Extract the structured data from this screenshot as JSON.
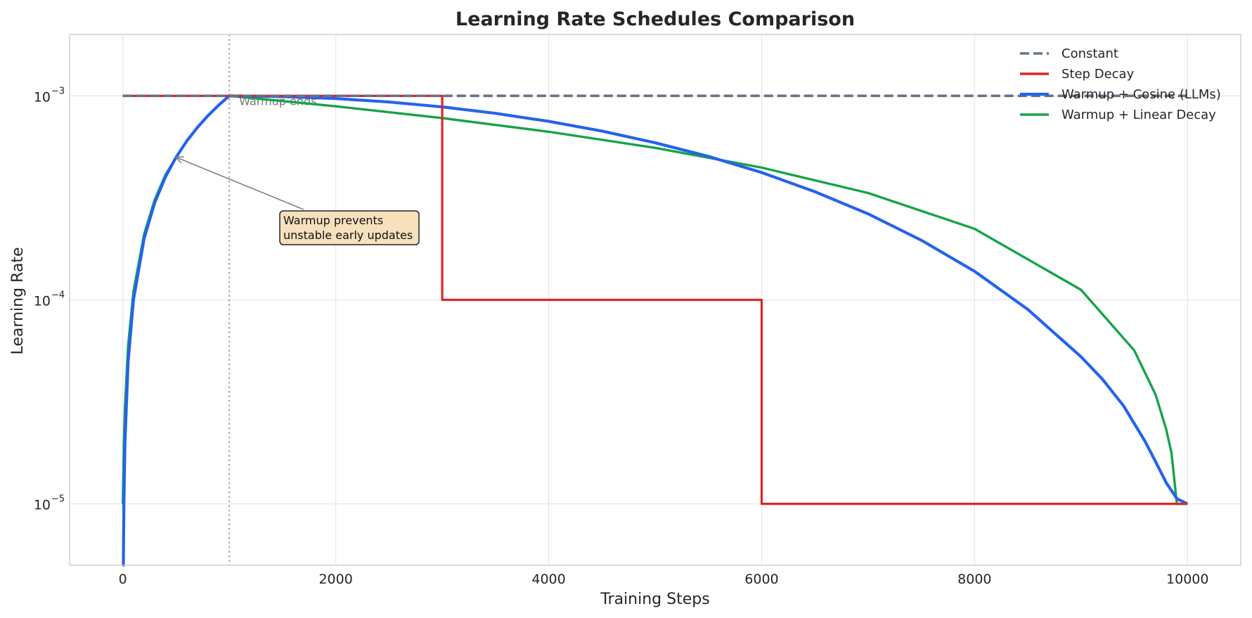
{
  "chart_data": {
    "type": "line",
    "title": "Learning Rate Schedules Comparison",
    "xlabel": "Training Steps",
    "ylabel": "Learning Rate",
    "xlim": [
      -500,
      10500
    ],
    "ylim": [
      5e-06,
      0.002
    ],
    "yscale": "log",
    "grid": true,
    "legend_position": "top-right",
    "x_ticks": [
      0,
      2000,
      4000,
      6000,
      8000,
      10000
    ],
    "x_tick_labels": [
      "0",
      "2000",
      "4000",
      "6000",
      "8000",
      "10000"
    ],
    "y_ticks": [
      {
        "value": 1e-05,
        "base": "10",
        "exp": "−5"
      },
      {
        "value": 0.0001,
        "base": "10",
        "exp": "−4"
      },
      {
        "value": 0.001,
        "base": "10",
        "exp": "−3"
      }
    ],
    "series": [
      {
        "name": "Constant",
        "color": "#64748b",
        "dash": true,
        "x": [
          0,
          10000
        ],
        "y": [
          0.001,
          0.001
        ]
      },
      {
        "name": "Step Decay",
        "color": "#dc2626",
        "dash": false,
        "x": [
          0,
          3000,
          3000,
          6000,
          6000,
          10000
        ],
        "y": [
          0.001,
          0.001,
          0.0001,
          0.0001,
          1e-05,
          1e-05
        ]
      },
      {
        "name": "Warmup + Cosine (LLMs)",
        "color": "#2563eb",
        "dash": false,
        "x": [
          0,
          5,
          10,
          20,
          50,
          100,
          200,
          300,
          400,
          500,
          600,
          700,
          800,
          900,
          1000,
          1500,
          2000,
          2500,
          3000,
          3500,
          4000,
          4500,
          5000,
          5500,
          6000,
          6500,
          7000,
          7500,
          8000,
          8500,
          9000,
          9200,
          9400,
          9600,
          9700,
          9800,
          9900,
          10000
        ],
        "y": [
          1e-06,
          5e-06,
          1e-05,
          2e-05,
          5e-05,
          0.0001,
          0.0002,
          0.0003,
          0.0004,
          0.0005,
          0.0006,
          0.0007,
          0.0008,
          0.0009,
          0.001,
          0.000992,
          0.00097,
          0.000933,
          0.000883,
          0.000821,
          0.00075,
          0.000672,
          0.000589,
          0.000505,
          0.000421,
          0.000339,
          0.000264,
          0.000196,
          0.000138,
          8.98e-05,
          5.26e-05,
          4.09e-05,
          3.02e-05,
          2.03e-05,
          1.61e-05,
          1.27e-05,
          1.06e-05,
          1e-05
        ]
      },
      {
        "name": "Warmup + Linear Decay",
        "color": "#16a34a",
        "dash": false,
        "x": [
          0,
          10,
          20,
          50,
          100,
          200,
          300,
          400,
          500,
          600,
          700,
          800,
          900,
          1000,
          2000,
          3000,
          4000,
          5000,
          6000,
          7000,
          8000,
          9000,
          9500,
          9700,
          9800,
          9850,
          9900,
          9950,
          10000
        ],
        "y": [
          1e-05,
          2e-05,
          3e-05,
          6e-05,
          0.00011,
          0.00021,
          0.00031,
          0.00041,
          0.0005,
          0.0006,
          0.0007,
          0.0008,
          0.0009,
          0.001,
          0.000889,
          0.000778,
          0.000667,
          0.000556,
          0.000445,
          0.000334,
          0.000223,
          0.000112,
          5.65e-05,
          3.43e-05,
          2.32e-05,
          1.77e-05,
          1e-05,
          1e-05,
          1e-05
        ]
      }
    ],
    "warmup_line": {
      "x": 1000,
      "label": "Warmup ends"
    },
    "annotation": {
      "lines": [
        "Warmup prevents",
        "unstable early updates"
      ],
      "arrow_target": {
        "x": 500,
        "y": 0.0005
      },
      "text_anchor": {
        "x": 1500,
        "y": 0.00023
      }
    }
  }
}
